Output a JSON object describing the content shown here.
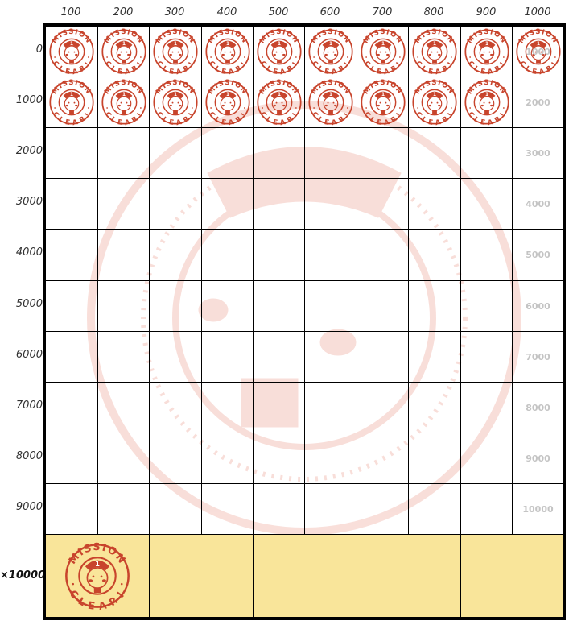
{
  "card": {
    "column_headers": [
      "100",
      "200",
      "300",
      "400",
      "500",
      "600",
      "700",
      "800",
      "900",
      "1000"
    ],
    "row_headers": [
      "0",
      "1000",
      "2000",
      "3000",
      "4000",
      "5000",
      "6000",
      "7000",
      "8000",
      "9000"
    ],
    "bonus_row_header": "×10000",
    "right_column_labels": [
      "1000",
      "2000",
      "3000",
      "4000",
      "5000",
      "6000",
      "7000",
      "8000",
      "9000",
      "10000"
    ],
    "stamped_counts_per_row": [
      10,
      9,
      0,
      0,
      0,
      0,
      0,
      0,
      0,
      0
    ],
    "bonus_cells": 5,
    "bonus_stamped": 1
  },
  "stamp": {
    "top_text": "MISSION",
    "bottom_text": "CLEAR!",
    "badge_number": "1",
    "color": "#c8442c"
  },
  "colors": {
    "bonus_background": "#f9e59a",
    "watermark": "#f4c4bb",
    "label_gray": "#c4c4c4"
  }
}
